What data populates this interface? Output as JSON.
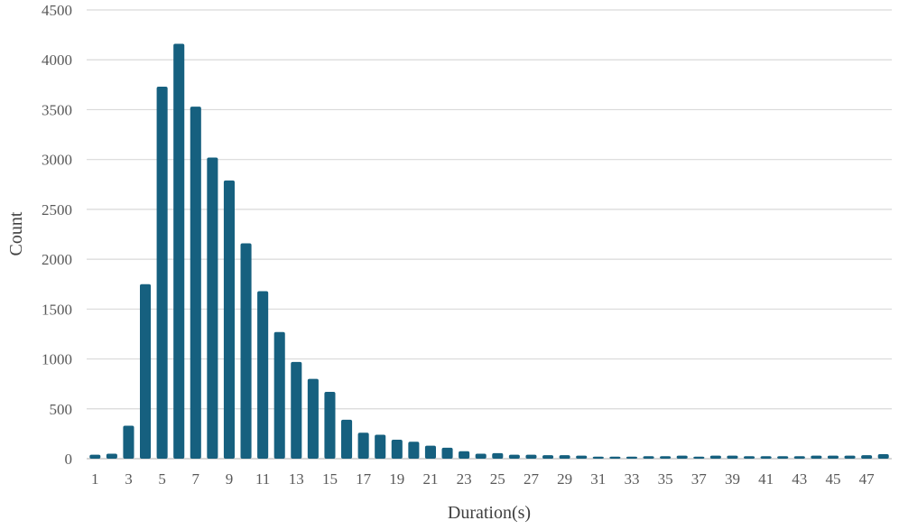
{
  "chart_data": {
    "type": "bar",
    "title": "",
    "xlabel": "Duration(s)",
    "ylabel": "Count",
    "ylim": [
      0,
      4500
    ],
    "yticks": [
      0,
      500,
      1000,
      1500,
      2000,
      2500,
      3000,
      3500,
      4000,
      4500
    ],
    "categories": [
      "1",
      "2",
      "3",
      "4",
      "5",
      "6",
      "7",
      "8",
      "9",
      "10",
      "11",
      "12",
      "13",
      "14",
      "15",
      "16",
      "17",
      "18",
      "19",
      "20",
      "21",
      "22",
      "23",
      "24",
      "25",
      "26",
      "27",
      "28",
      "29",
      "30",
      "31",
      "32",
      "33",
      "34",
      "35",
      "36",
      "37",
      "38",
      "39",
      "40",
      "41",
      "42",
      "43",
      "44",
      "45",
      "46",
      "47",
      "48"
    ],
    "xtick_labels_shown": [
      "1",
      "3",
      "5",
      "7",
      "9",
      "11",
      "13",
      "15",
      "17",
      "19",
      "21",
      "23",
      "25",
      "27",
      "29",
      "31",
      "33",
      "35",
      "37",
      "39",
      "41",
      "43",
      "45",
      "47"
    ],
    "values": [
      40,
      50,
      330,
      1750,
      3730,
      4160,
      3530,
      3020,
      2790,
      2160,
      1680,
      1270,
      970,
      800,
      670,
      390,
      260,
      240,
      190,
      170,
      130,
      110,
      75,
      50,
      55,
      40,
      40,
      35,
      35,
      30,
      20,
      20,
      20,
      25,
      25,
      30,
      20,
      30,
      30,
      25,
      25,
      25,
      25,
      30,
      30,
      30,
      35,
      45
    ],
    "grid": true,
    "bar_color": "#16607f"
  }
}
